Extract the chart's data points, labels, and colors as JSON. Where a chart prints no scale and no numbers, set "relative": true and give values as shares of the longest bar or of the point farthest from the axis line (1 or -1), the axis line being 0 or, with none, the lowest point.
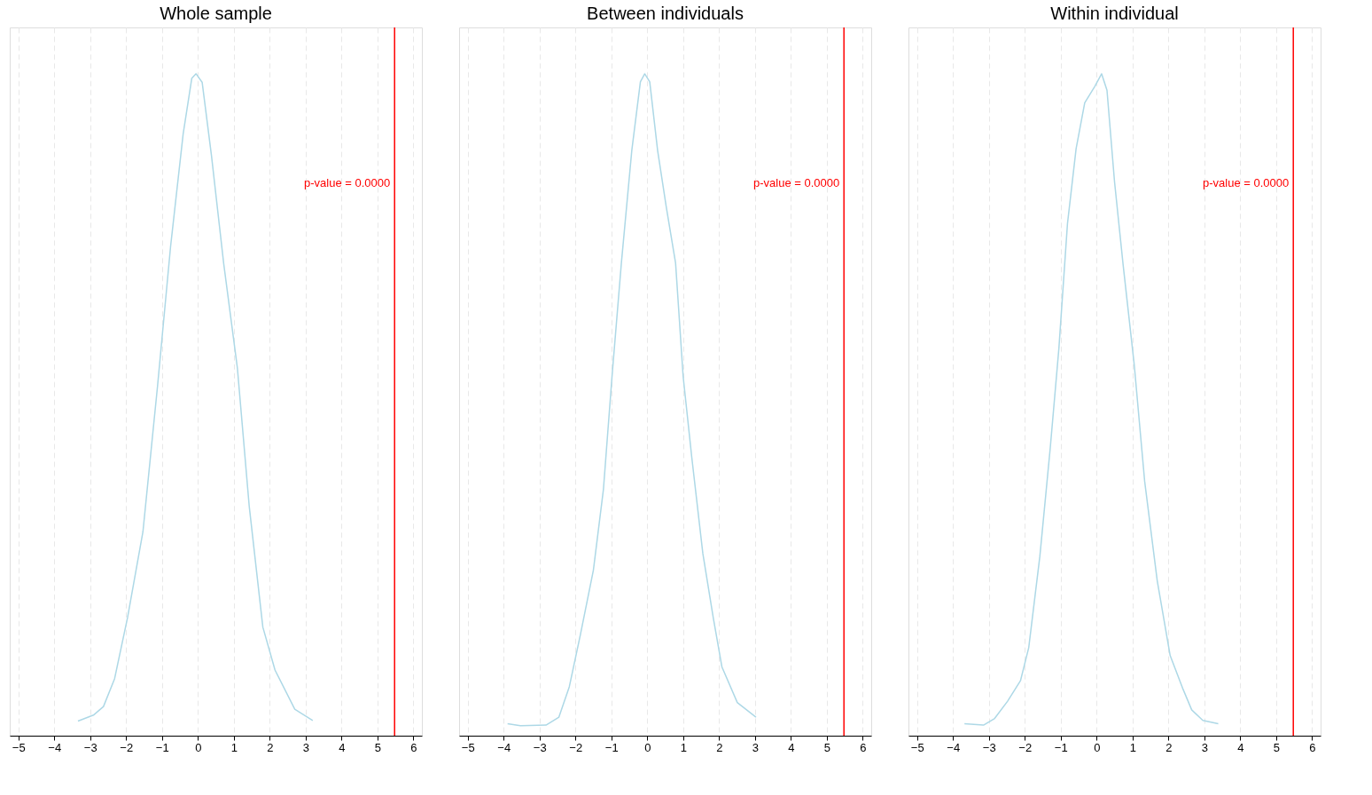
{
  "chart_data": [
    {
      "type": "line",
      "title": "Whole sample",
      "relative": true,
      "grid": "x",
      "line_style": "solid",
      "xlim": [
        -5.24,
        6.24
      ],
      "xticks": [
        -5,
        -4,
        -3,
        -2,
        -1,
        0,
        1,
        2,
        3,
        4,
        5,
        6
      ],
      "series": [
        {
          "color": "#add8e6",
          "x": [
            -3.34,
            -2.91,
            -2.63,
            -2.32,
            -1.96,
            -1.53,
            -1.12,
            -0.76,
            -0.41,
            -0.17,
            -0.05,
            0.12,
            0.38,
            0.72,
            1.1,
            1.43,
            1.81,
            2.15,
            2.7,
            3.2
          ],
          "values": [
            0.022,
            0.031,
            0.044,
            0.086,
            0.178,
            0.308,
            0.53,
            0.739,
            0.909,
            0.993,
            1.0,
            0.987,
            0.876,
            0.713,
            0.556,
            0.347,
            0.164,
            0.099,
            0.04,
            0.023
          ]
        }
      ],
      "ref_lines": [
        {
          "axis": "x",
          "value": 5.48,
          "color": "#ff0000"
        }
      ],
      "annotations": [
        "p-value = 0.0000"
      ]
    },
    {
      "type": "line",
      "title": "Between individuals",
      "relative": true,
      "grid": "x",
      "line_style": "solid",
      "xlim": [
        -5.24,
        6.24
      ],
      "xticks": [
        -5,
        -4,
        -3,
        -2,
        -1,
        0,
        1,
        2,
        3,
        4,
        5,
        6
      ],
      "series": [
        {
          "color": "#add8e6",
          "x": [
            -3.89,
            -3.53,
            -2.82,
            -2.46,
            -2.17,
            -1.86,
            -1.5,
            -1.22,
            -0.98,
            -0.72,
            -0.43,
            -0.19,
            -0.07,
            0.07,
            0.29,
            0.53,
            0.79,
            1.0,
            1.24,
            1.55,
            1.84,
            2.08,
            2.51,
            3.03
          ],
          "values": [
            0.018,
            0.015,
            0.016,
            0.028,
            0.074,
            0.153,
            0.25,
            0.372,
            0.543,
            0.714,
            0.884,
            0.988,
            1.0,
            0.988,
            0.884,
            0.799,
            0.714,
            0.543,
            0.421,
            0.275,
            0.178,
            0.104,
            0.05,
            0.028
          ]
        }
      ],
      "ref_lines": [
        {
          "axis": "x",
          "value": 5.48,
          "color": "#ff0000"
        }
      ],
      "annotations": [
        "p-value = 0.0000"
      ]
    },
    {
      "type": "line",
      "title": "Within individual",
      "relative": true,
      "grid": "x",
      "line_style": "solid",
      "xlim": [
        -5.24,
        6.24
      ],
      "xticks": [
        -5,
        -4,
        -3,
        -2,
        -1,
        0,
        1,
        2,
        3,
        4,
        5,
        6
      ],
      "series": [
        {
          "color": "#add8e6",
          "x": [
            -3.68,
            -3.15,
            -2.84,
            -2.48,
            -2.12,
            -1.89,
            -1.58,
            -1.29,
            -1.05,
            -0.81,
            -0.57,
            -0.33,
            -0.05,
            0.14,
            0.29,
            0.5,
            0.74,
            1.05,
            1.34,
            1.69,
            2.05,
            2.41,
            2.65,
            2.96,
            3.39
          ],
          "values": [
            0.018,
            0.016,
            0.026,
            0.052,
            0.083,
            0.133,
            0.271,
            0.435,
            0.585,
            0.774,
            0.887,
            0.956,
            0.981,
            1.0,
            0.975,
            0.837,
            0.711,
            0.56,
            0.384,
            0.234,
            0.121,
            0.07,
            0.039,
            0.023,
            0.018
          ]
        }
      ],
      "ref_lines": [
        {
          "axis": "x",
          "value": 5.48,
          "color": "#ff0000"
        }
      ],
      "annotations": [
        "p-value = 0.0000"
      ]
    }
  ]
}
